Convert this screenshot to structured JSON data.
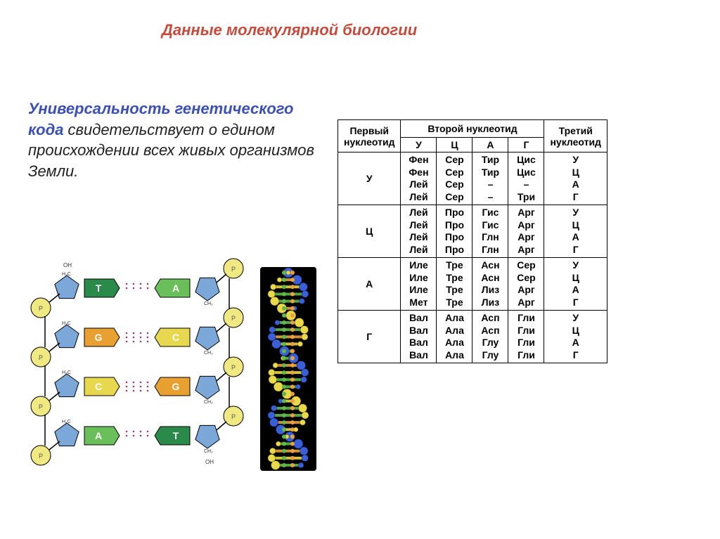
{
  "title": "Данные молекулярной биологии",
  "subtitle_emph": "Универсальность генетического кода",
  "subtitle_rest": " свидетельствует о едином происхождении всех живых организмов Земли.",
  "colors": {
    "title": "#c94a3b",
    "emph": "#3a4fb8",
    "text": "#222222",
    "border": "#000000",
    "helix_bg": "#000000",
    "helix_blue": "#3a5fd8",
    "helix_green": "#5fb84a",
    "helix_orange": "#e8a040",
    "helix_yellow": "#e8d84a",
    "ladder_blue": "#7ba8d8",
    "ladder_green_dark": "#2a8a4a",
    "ladder_green_light": "#6abf5a",
    "ladder_orange": "#e8a030",
    "ladder_yellow": "#e8d850",
    "ladder_phosphate": "#f0e880"
  },
  "fonts": {
    "title_size": 22,
    "subtitle_size": 22,
    "table_size": 14
  },
  "dna_ladder": {
    "type": "diagram",
    "pairs": [
      {
        "left": "T",
        "right": "A",
        "left_color": "#2a8a4a",
        "right_color": "#6abf5a",
        "bonds": 2
      },
      {
        "left": "G",
        "right": "C",
        "left_color": "#e8a030",
        "right_color": "#e8d850",
        "bonds": 3
      },
      {
        "left": "C",
        "right": "G",
        "left_color": "#e8d850",
        "right_color": "#e8a030",
        "bonds": 3
      },
      {
        "left": "A",
        "right": "T",
        "left_color": "#6abf5a",
        "right_color": "#2a8a4a",
        "bonds": 2
      }
    ],
    "backbone_color": "#7ba8d8",
    "phosphate_color": "#f0e880",
    "labels": [
      "H₂C",
      "OH",
      "CH₂",
      "O",
      "P"
    ]
  },
  "codon_table": {
    "type": "table",
    "header_first": "Первый нуклеотид",
    "header_second": "Второй нуклеотид",
    "header_third": "Третий нуклеотид",
    "second_cols": [
      "У",
      "Ц",
      "А",
      "Г"
    ],
    "third_labels": [
      "У",
      "Ц",
      "А",
      "Г"
    ],
    "blocks": [
      {
        "first": "У",
        "rows": [
          [
            "Фен",
            "Сер",
            "Тир",
            "Цис"
          ],
          [
            "Фен",
            "Сер",
            "Тир",
            "Цис"
          ],
          [
            "Лей",
            "Сер",
            "–",
            "–"
          ],
          [
            "Лей",
            "Сер",
            "–",
            "Три"
          ]
        ]
      },
      {
        "first": "Ц",
        "rows": [
          [
            "Лей",
            "Про",
            "Гис",
            "Арг"
          ],
          [
            "Лей",
            "Про",
            "Гис",
            "Арг"
          ],
          [
            "Лей",
            "Про",
            "Глн",
            "Арг"
          ],
          [
            "Лей",
            "Про",
            "Глн",
            "Арг"
          ]
        ]
      },
      {
        "first": "А",
        "rows": [
          [
            "Иле",
            "Тре",
            "Асн",
            "Сер"
          ],
          [
            "Иле",
            "Тре",
            "Асн",
            "Сер"
          ],
          [
            "Иле",
            "Тре",
            "Лиз",
            "Арг"
          ],
          [
            "Мет",
            "Тре",
            "Лиз",
            "Арг"
          ]
        ]
      },
      {
        "first": "Г",
        "rows": [
          [
            "Вал",
            "Ала",
            "Асп",
            "Гли"
          ],
          [
            "Вал",
            "Ала",
            "Асп",
            "Гли"
          ],
          [
            "Вал",
            "Ала",
            "Глу",
            "Гли"
          ],
          [
            "Вал",
            "Ала",
            "Глу",
            "Гли"
          ]
        ]
      }
    ]
  }
}
